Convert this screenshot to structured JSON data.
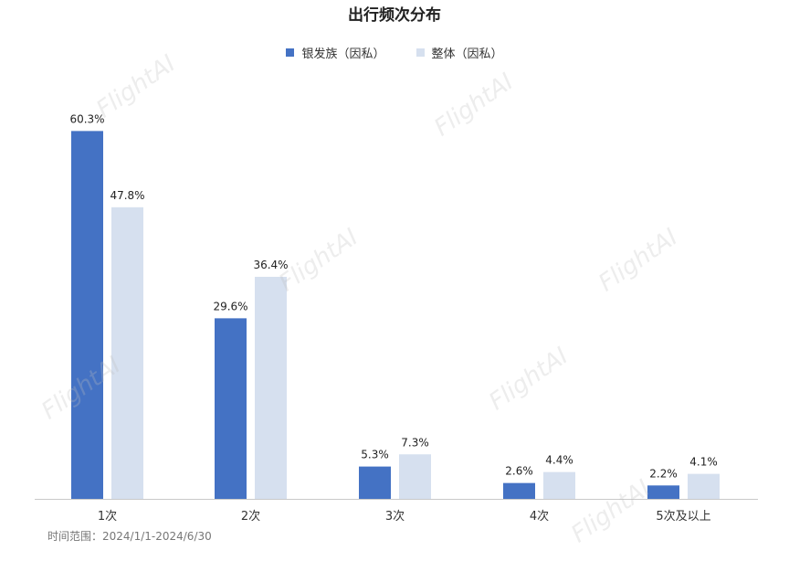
{
  "watermark": "FlightAI",
  "footer": "时间范围：2024/1/1-2024/6/30",
  "chart_data": {
    "type": "bar",
    "title": "出行频次分布",
    "categories": [
      "1次",
      "2次",
      "3次",
      "4次",
      "5次及以上"
    ],
    "series": [
      {
        "name": "银发族（因私）",
        "values": [
          60.3,
          29.6,
          5.3,
          2.6,
          2.2
        ],
        "color": "#4472c4"
      },
      {
        "name": "整体（因私）",
        "values": [
          47.8,
          36.4,
          7.3,
          4.4,
          4.1
        ],
        "color": "#d6e0ef"
      }
    ],
    "value_suffix": "%",
    "ylim": [
      0,
      65
    ],
    "legend": "top-center",
    "grid": false
  }
}
